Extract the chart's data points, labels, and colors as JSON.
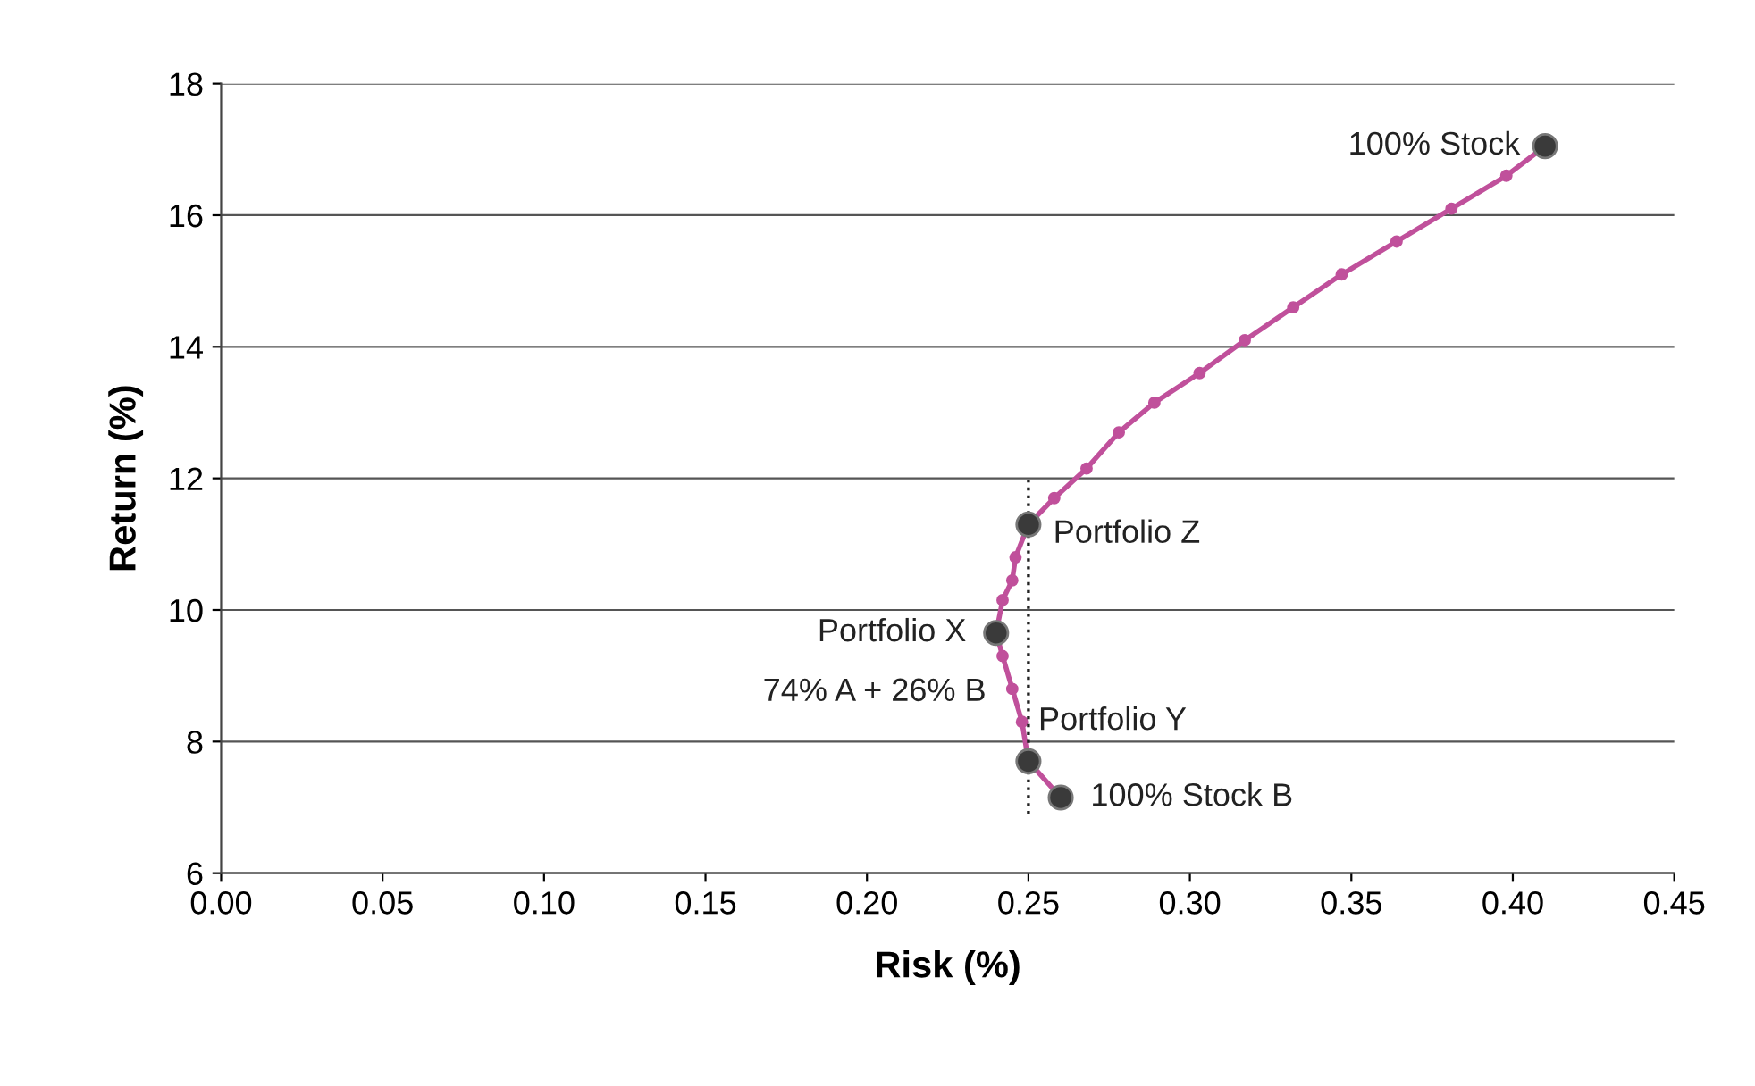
{
  "chart_data": {
    "type": "line",
    "xlabel": "Risk (%)",
    "ylabel": "Return (%)",
    "xlim": [
      0,
      0.45
    ],
    "ylim": [
      6,
      18
    ],
    "xticks": [
      {
        "value": 0,
        "label": "0.00"
      },
      {
        "value": 0.05,
        "label": "0.05"
      },
      {
        "value": 0.1,
        "label": "0.10"
      },
      {
        "value": 0.15,
        "label": "0.15"
      },
      {
        "value": 0.2,
        "label": "0.20"
      },
      {
        "value": 0.25,
        "label": "0.25"
      },
      {
        "value": 0.3,
        "label": "0.30"
      },
      {
        "value": 0.35,
        "label": "0.35"
      },
      {
        "value": 0.4,
        "label": "0.40"
      },
      {
        "value": 0.45,
        "label": "0.45"
      }
    ],
    "yticks": [
      6,
      8,
      10,
      12,
      14,
      16,
      18
    ],
    "grid": "y",
    "legend": false,
    "series": [
      {
        "color": "#c0509b",
        "marker": "circle",
        "line_style": "solid",
        "x": [
          0.26,
          0.25,
          0.248,
          0.245,
          0.242,
          0.24,
          0.242,
          0.245,
          0.246,
          0.25,
          0.258,
          0.268,
          0.278,
          0.289,
          0.303,
          0.317,
          0.332,
          0.347,
          0.364,
          0.381,
          0.398,
          0.41
        ],
        "values": [
          7.15,
          7.7,
          8.3,
          8.8,
          9.3,
          9.65,
          10.15,
          10.45,
          10.8,
          11.3,
          11.7,
          12.15,
          12.7,
          13.15,
          13.6,
          14.1,
          14.6,
          15.1,
          15.6,
          16.1,
          16.6,
          17.05
        ]
      },
      {
        "color": "#222222",
        "marker": "none",
        "line_style": "dotted",
        "x": [
          0.25,
          0.25
        ],
        "values": [
          6.9,
          12
        ]
      },
      {
        "type": "scatter",
        "color": "#3a3a3a",
        "marker": "circle",
        "x": [
          0.41,
          0.25,
          0.24,
          0.25,
          0.26
        ],
        "values": [
          17.05,
          11.3,
          9.65,
          7.7,
          7.15
        ]
      }
    ],
    "annotations": [
      {
        "text": "100% Stock",
        "x": 0.41,
        "y": 17.05
      },
      {
        "text": "Portfolio Z",
        "x": 0.25,
        "y": 11.3
      },
      {
        "text": "Portfolio X",
        "x": 0.24,
        "y": 9.65
      },
      {
        "text": "74% A + 26% B",
        "x": 0.24,
        "y": 9.65
      },
      {
        "text": "Portfolio Y",
        "x": 0.25,
        "y": 7.7
      },
      {
        "text": "100% Stock B",
        "x": 0.26,
        "y": 7.15
      }
    ]
  }
}
